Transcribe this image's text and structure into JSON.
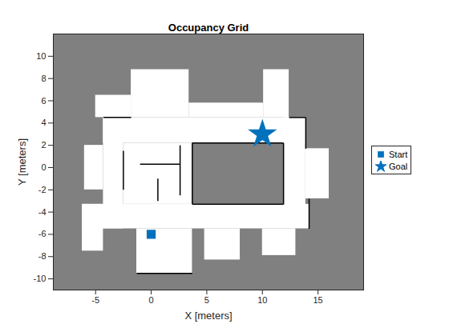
{
  "chart_data": {
    "type": "occupancy_grid",
    "title": "Occupancy Grid",
    "x_label": "X [meters]",
    "y_label": "Y [meters]",
    "xlim": [
      -8.8,
      19.1
    ],
    "ylim": [
      -11,
      12
    ],
    "xticks": [
      -5,
      0,
      5,
      10,
      15
    ],
    "yticks": [
      -10,
      -8,
      -6,
      -4,
      -2,
      0,
      2,
      4,
      6,
      8,
      10
    ],
    "free_space": [
      {
        "x1": -4.3,
        "x2": 13.9,
        "y1": 2.2,
        "y2": 4.5
      },
      {
        "x1": 11.9,
        "x2": 13.9,
        "y1": -5.4,
        "y2": 4.5
      },
      {
        "x1": -6.2,
        "x2": 14.2,
        "y1": -5.5,
        "y2": -3.3
      },
      {
        "x1": -4.3,
        "x2": -2.5,
        "y1": -5.5,
        "y2": 4.5
      },
      {
        "x1": -2.5,
        "x2": 3.7,
        "y1": -3.3,
        "y2": 2.2
      },
      {
        "x1": -1.8,
        "x2": 3.4,
        "y1": 4.5,
        "y2": 8.8
      },
      {
        "x1": -5.0,
        "x2": -1.8,
        "y1": 4.5,
        "y2": 6.5
      },
      {
        "x1": 10.1,
        "x2": 12.4,
        "y1": 4.5,
        "y2": 8.8
      },
      {
        "x1": 3.4,
        "x2": 10.1,
        "y1": 4.5,
        "y2": 5.8
      },
      {
        "x1": 13.9,
        "x2": 16.0,
        "y1": -2.8,
        "y2": 1.7
      },
      {
        "x1": -1.3,
        "x2": 3.7,
        "y1": -9.5,
        "y2": -5.5
      },
      {
        "x1": 4.8,
        "x2": 8.0,
        "y1": -8.3,
        "y2": -5.5
      },
      {
        "x1": 10.0,
        "x2": 13.0,
        "y1": -7.9,
        "y2": -5.5
      },
      {
        "x1": -6.2,
        "x2": -4.3,
        "y1": -7.5,
        "y2": -3.3
      },
      {
        "x1": -6.0,
        "x2": -4.3,
        "y1": -2.0,
        "y2": 2.0
      }
    ],
    "walls": [
      {
        "x1": 3.7,
        "y1": 2.2,
        "x2": 11.9,
        "y2": 2.2
      },
      {
        "x1": 3.7,
        "y1": -3.3,
        "x2": 11.9,
        "y2": -3.3
      },
      {
        "x1": 3.7,
        "y1": -3.3,
        "x2": 3.7,
        "y2": 2.2
      },
      {
        "x1": 11.9,
        "y1": -3.3,
        "x2": 11.9,
        "y2": 2.2
      },
      {
        "x1": 13.9,
        "y1": 1.7,
        "x2": 13.9,
        "y2": 4.5
      },
      {
        "x1": 14.2,
        "y1": -5.5,
        "x2": 14.2,
        "y2": -2.8
      },
      {
        "x1": -4.3,
        "y1": 4.5,
        "x2": -1.8,
        "y2": 4.5
      },
      {
        "x1": 12.4,
        "y1": 4.5,
        "x2": 13.9,
        "y2": 4.5
      },
      {
        "x1": -2.5,
        "y1": -2.0,
        "x2": -2.5,
        "y2": 1.5
      },
      {
        "x1": -1.0,
        "y1": 0.3,
        "x2": 2.6,
        "y2": 0.3
      },
      {
        "x1": 0.6,
        "y1": -3.0,
        "x2": 0.6,
        "y2": -1.0
      },
      {
        "x1": 2.6,
        "y1": -2.5,
        "x2": 2.6,
        "y2": 2.0
      },
      {
        "x1": -1.3,
        "y1": -9.5,
        "x2": 3.7,
        "y2": -9.5
      }
    ],
    "series": [
      {
        "name": "Start",
        "color": "#0072bd",
        "marker": "square",
        "x": [
          0
        ],
        "y": [
          -6
        ]
      },
      {
        "name": "Goal",
        "color": "#0072bd",
        "marker": "star",
        "x": [
          10
        ],
        "y": [
          3
        ]
      }
    ],
    "legend": "east"
  }
}
